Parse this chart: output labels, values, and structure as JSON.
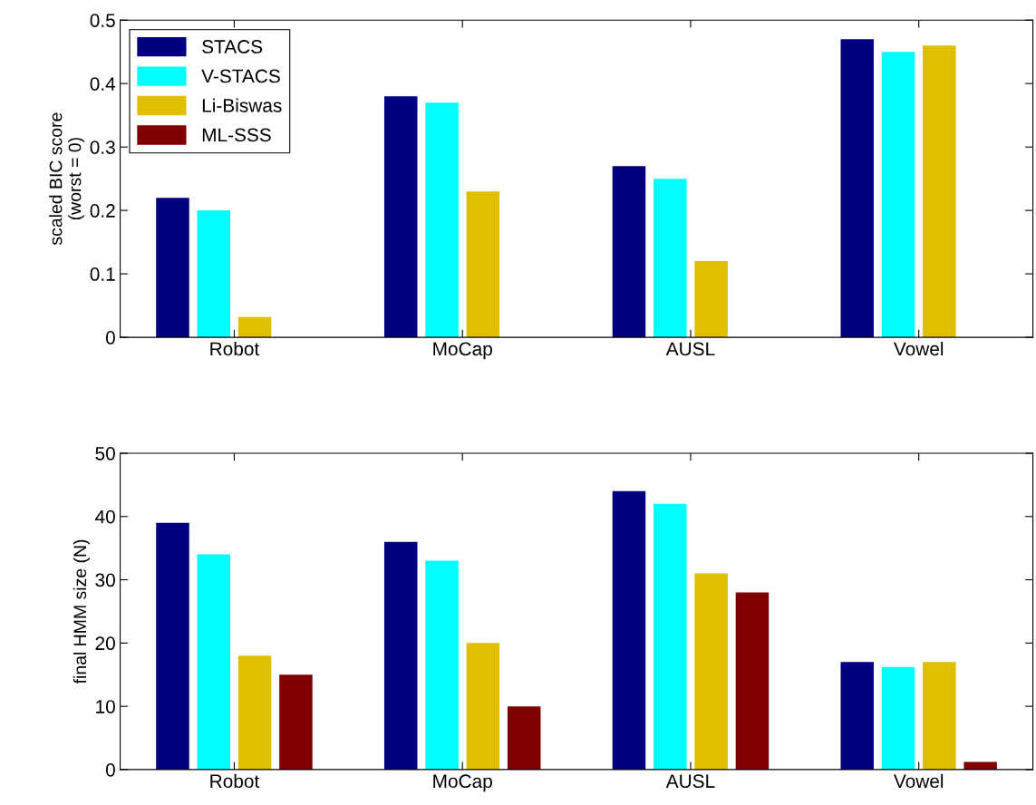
{
  "chart_data": [
    {
      "type": "bar",
      "ylabel": "scaled BIC score\n(worst = 0)",
      "categories": [
        "Robot",
        "MoCap",
        "AUSL",
        "Vowel"
      ],
      "series": [
        {
          "name": "STACS",
          "color": "#000080",
          "values": [
            0.22,
            0.38,
            0.27,
            0.47
          ]
        },
        {
          "name": "V-STACS",
          "color": "#00ffff",
          "values": [
            0.2,
            0.37,
            0.25,
            0.45
          ]
        },
        {
          "name": "Li-Biswas",
          "color": "#e0be00",
          "values": [
            0.032,
            0.23,
            0.12,
            0.46
          ]
        },
        {
          "name": "ML-SSS",
          "color": "#800000",
          "values": [
            0,
            0,
            0,
            0
          ]
        }
      ],
      "ylim": [
        0,
        0.5
      ],
      "yticks": [
        0,
        0.1,
        0.2,
        0.3,
        0.4,
        0.5
      ],
      "legend": "top left",
      "grid": false
    },
    {
      "type": "bar",
      "ylabel": "final HMM size (N)",
      "categories": [
        "Robot",
        "MoCap",
        "AUSL",
        "Vowel"
      ],
      "series": [
        {
          "color": "#000080",
          "values": [
            39,
            36,
            44,
            17
          ]
        },
        {
          "color": "#00ffff",
          "values": [
            34,
            33,
            42,
            16.2
          ]
        },
        {
          "color": "#e0be00",
          "values": [
            18,
            20,
            31,
            17
          ]
        },
        {
          "color": "#800000",
          "values": [
            15,
            10,
            28,
            1.2
          ]
        }
      ],
      "ylim": [
        0,
        50
      ],
      "yticks": [
        0,
        10,
        20,
        30,
        40,
        50
      ],
      "grid": false
    }
  ]
}
